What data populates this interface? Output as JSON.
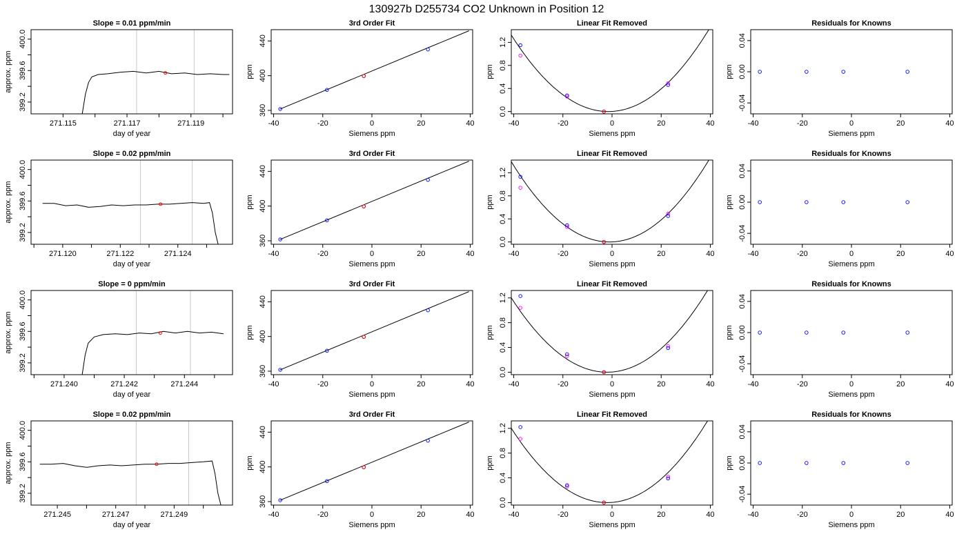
{
  "title": "130927b     D255734   CO2 Unknown in Position  12",
  "colors": {
    "axis": "#000000",
    "line": "#000000",
    "guide": "#c8c8c8",
    "blue": "#0000ff",
    "magenta": "#ff00ff",
    "red": "#ff0000"
  },
  "chart_data": [
    {
      "type": "line",
      "title": "Slope =  0.01  ppm/min",
      "xlabel": "day of year",
      "ylabel": "approx. ppm",
      "xlim": [
        271.114,
        271.1203
      ],
      "ylim": [
        399.05,
        400.12
      ],
      "xticks": [
        271.115,
        271.116,
        271.117,
        271.118,
        271.119,
        271.12
      ],
      "xticklabels": [
        "271.115",
        "",
        "271.117",
        "",
        "271.119",
        ""
      ],
      "yticks": [
        399.2,
        399.4,
        399.6,
        399.8,
        400.0
      ],
      "yticklabels": [
        "399.2",
        "",
        "399.6",
        "",
        "400.0"
      ],
      "guides": [
        271.1173,
        271.1191
      ],
      "marker": [
        271.1182,
        399.57
      ],
      "series": [
        {
          "x": [
            271.1156,
            271.1157,
            271.1158,
            271.1159,
            271.1161,
            271.1164,
            271.1168,
            271.1172,
            271.1176,
            271.118,
            271.1184,
            271.1188,
            271.1192,
            271.1196,
            271.12,
            271.1202
          ],
          "y": [
            399.05,
            399.3,
            399.45,
            399.52,
            399.55,
            399.56,
            399.58,
            399.59,
            399.57,
            399.59,
            399.56,
            399.57,
            399.55,
            399.56,
            399.55,
            399.55
          ]
        }
      ]
    },
    {
      "type": "line",
      "title": "Slope =  0.02  ppm/min",
      "xlabel": "day of year",
      "ylabel": "approx. ppm",
      "xlim": [
        271.1189,
        271.1259
      ],
      "ylim": [
        399.05,
        400.12
      ],
      "xticks": [
        271.119,
        271.12,
        271.121,
        271.122,
        271.123,
        271.124,
        271.125
      ],
      "xticklabels": [
        "",
        "271.120",
        "",
        "271.122",
        "",
        "271.124",
        ""
      ],
      "yticks": [
        399.2,
        399.4,
        399.6,
        399.8,
        400.0
      ],
      "yticklabels": [
        "399.2",
        "",
        "399.6",
        "",
        "400.0"
      ],
      "guides": [
        271.1227,
        271.1245
      ],
      "marker": [
        271.1234,
        399.56
      ],
      "series": [
        {
          "x": [
            271.1193,
            271.1197,
            271.1201,
            271.1205,
            271.1209,
            271.1213,
            271.1217,
            271.1221,
            271.1225,
            271.1229,
            271.1233,
            271.1237,
            271.1241,
            271.1245,
            271.1249,
            271.1251,
            271.1252,
            271.1253,
            271.1254
          ],
          "y": [
            399.57,
            399.57,
            399.54,
            399.55,
            399.52,
            399.53,
            399.55,
            399.54,
            399.55,
            399.55,
            399.56,
            399.56,
            399.57,
            399.58,
            399.57,
            399.58,
            399.45,
            399.2,
            399.05
          ]
        }
      ]
    },
    {
      "type": "line",
      "title": "Slope =  0  ppm/min",
      "xlabel": "day of year",
      "ylabel": "approx. ppm",
      "xlim": [
        271.2389,
        271.2456
      ],
      "ylim": [
        399.05,
        400.12
      ],
      "xticks": [
        271.239,
        271.24,
        271.241,
        271.242,
        271.243,
        271.244,
        271.245
      ],
      "xticklabels": [
        "",
        "271.240",
        "",
        "271.242",
        "",
        "271.244",
        ""
      ],
      "yticks": [
        399.2,
        399.4,
        399.6,
        399.8,
        400.0
      ],
      "yticklabels": [
        "399.2",
        "",
        "399.6",
        "",
        "400.0"
      ],
      "guides": [
        271.2424,
        271.2442
      ],
      "marker": [
        271.2432,
        399.58
      ],
      "series": [
        {
          "x": [
            271.2406,
            271.2407,
            271.2408,
            271.241,
            271.2413,
            271.2417,
            271.2421,
            271.2425,
            271.2429,
            271.2433,
            271.2437,
            271.2441,
            271.2445,
            271.2449,
            271.2453
          ],
          "y": [
            399.05,
            399.3,
            399.45,
            399.53,
            399.56,
            399.57,
            399.56,
            399.58,
            399.57,
            399.6,
            399.58,
            399.6,
            399.58,
            399.59,
            399.57
          ]
        }
      ]
    },
    {
      "type": "line",
      "title": "Slope =  0.02  ppm/min",
      "xlabel": "day of year",
      "ylabel": "approx. ppm",
      "xlim": [
        271.2441,
        271.251
      ],
      "ylim": [
        399.05,
        400.12
      ],
      "xticks": [
        271.245,
        271.246,
        271.247,
        271.248,
        271.249,
        271.25
      ],
      "xticklabels": [
        "271.245",
        "",
        "271.247",
        "",
        "271.249",
        ""
      ],
      "yticks": [
        399.2,
        399.4,
        399.6,
        399.8,
        400.0
      ],
      "yticklabels": [
        "399.2",
        "",
        "399.6",
        "",
        "400.0"
      ],
      "guides": [
        271.2477,
        271.2495
      ],
      "marker": [
        271.2484,
        399.57
      ],
      "series": [
        {
          "x": [
            271.2444,
            271.2448,
            271.2452,
            271.2456,
            271.246,
            271.2464,
            271.2468,
            271.2472,
            271.2476,
            271.248,
            271.2484,
            271.2488,
            271.2492,
            271.2496,
            271.25,
            271.2503,
            271.2504,
            271.2505,
            271.2506
          ],
          "y": [
            399.57,
            399.57,
            399.58,
            399.55,
            399.53,
            399.55,
            399.56,
            399.55,
            399.56,
            399.57,
            399.57,
            399.58,
            399.58,
            399.59,
            399.6,
            399.61,
            399.45,
            399.2,
            399.05
          ]
        }
      ]
    },
    {
      "type": "scatter",
      "title": "3rd Order Fit",
      "xlabel": "Siemens ppm",
      "ylabel": "ppm",
      "xlim": [
        -41,
        41
      ],
      "ylim": [
        356,
        453
      ],
      "xticks": [
        -40,
        -20,
        0,
        20,
        40
      ],
      "xticklabels": [
        "-40",
        "-20",
        "0",
        "20",
        "40"
      ],
      "yticks": [
        360,
        400,
        440
      ],
      "yticklabels": [
        "360",
        "400",
        "440"
      ],
      "line": {
        "x": [
          -37.5,
          39.5
        ],
        "y": [
          361.4,
          451.7
        ]
      },
      "series": [
        {
          "x": [
            -37.3,
            -18.3,
            -3.3,
            22.8
          ],
          "y": [
            361.6,
            383.6,
            399.6,
            430.2
          ]
        }
      ],
      "highlight": [
        -3.3,
        399.6
      ]
    },
    {
      "type": "scatter",
      "title": "3rd Order Fit",
      "xlabel": "Siemens ppm",
      "ylabel": "ppm",
      "xlim": [
        -41,
        41
      ],
      "ylim": [
        356,
        453
      ],
      "xticks": [
        -40,
        -20,
        0,
        20,
        40
      ],
      "xticklabels": [
        "-40",
        "-20",
        "0",
        "20",
        "40"
      ],
      "yticks": [
        360,
        400,
        440
      ],
      "yticklabels": [
        "360",
        "400",
        "440"
      ],
      "line": {
        "x": [
          -37.5,
          39.5
        ],
        "y": [
          361.4,
          451.7
        ]
      },
      "series": [
        {
          "x": [
            -37.3,
            -18.3,
            -3.3,
            22.8
          ],
          "y": [
            361.6,
            383.6,
            399.6,
            430.2
          ]
        }
      ],
      "highlight": [
        -3.3,
        399.6
      ]
    },
    {
      "type": "scatter",
      "title": "3rd Order Fit",
      "xlabel": "Siemens ppm",
      "ylabel": "ppm",
      "xlim": [
        -41,
        41
      ],
      "ylim": [
        356,
        453
      ],
      "xticks": [
        -40,
        -20,
        0,
        20,
        40
      ],
      "xticklabels": [
        "-40",
        "-20",
        "0",
        "20",
        "40"
      ],
      "yticks": [
        360,
        400,
        440
      ],
      "yticklabels": [
        "360",
        "400",
        "440"
      ],
      "line": {
        "x": [
          -37.5,
          39.5
        ],
        "y": [
          361.4,
          451.7
        ]
      },
      "series": [
        {
          "x": [
            -37.3,
            -18.3,
            -3.3,
            22.8
          ],
          "y": [
            361.6,
            383.6,
            399.6,
            430.2
          ]
        }
      ],
      "highlight": [
        -3.3,
        399.6
      ]
    },
    {
      "type": "scatter",
      "title": "3rd Order Fit",
      "xlabel": "Siemens ppm",
      "ylabel": "ppm",
      "xlim": [
        -41,
        41
      ],
      "ylim": [
        356,
        453
      ],
      "xticks": [
        -40,
        -20,
        0,
        20,
        40
      ],
      "xticklabels": [
        "-40",
        "-20",
        "0",
        "20",
        "40"
      ],
      "yticks": [
        360,
        400,
        440
      ],
      "yticklabels": [
        "360",
        "400",
        "440"
      ],
      "line": {
        "x": [
          -37.5,
          39.5
        ],
        "y": [
          361.4,
          451.7
        ]
      },
      "series": [
        {
          "x": [
            -37.3,
            -18.3,
            -3.3,
            22.8
          ],
          "y": [
            361.6,
            383.6,
            399.6,
            430.2
          ]
        }
      ],
      "highlight": [
        -3.3,
        399.6
      ]
    },
    {
      "type": "scatter",
      "title": "Linear Fit Removed",
      "xlabel": "Siemens ppm",
      "ylabel": "ppm",
      "xlim": [
        -41,
        41
      ],
      "ylim": [
        -0.04,
        1.42
      ],
      "xticks": [
        -40,
        -20,
        0,
        20,
        40
      ],
      "xticklabels": [
        "-40",
        "-20",
        "0",
        "20",
        "40"
      ],
      "yticks": [
        0.0,
        0.4,
        0.8,
        1.2
      ],
      "yticklabels": [
        "0.0",
        "0.4",
        "0.8",
        "1.2"
      ],
      "curve": {
        "x0": -1.5,
        "a": 0.00085,
        "b": 0.0
      },
      "blue": {
        "x": [
          -37.3,
          -18.3,
          -3.3,
          22.8
        ],
        "y": [
          1.15,
          0.28,
          0.0,
          0.46
        ]
      },
      "magenta": {
        "x": [
          -37.3,
          -18.3,
          22.8
        ],
        "y": [
          0.97,
          0.26,
          0.49
        ]
      },
      "highlight": [
        -3.3,
        0.0
      ]
    },
    {
      "type": "scatter",
      "title": "Linear Fit Removed",
      "xlabel": "Siemens ppm",
      "ylabel": "ppm",
      "xlim": [
        -41,
        41
      ],
      "ylim": [
        -0.04,
        1.42
      ],
      "xticks": [
        -40,
        -20,
        0,
        20,
        40
      ],
      "xticklabels": [
        "-40",
        "-20",
        "0",
        "20",
        "40"
      ],
      "yticks": [
        0.0,
        0.4,
        0.8,
        1.2
      ],
      "yticklabels": [
        "0.0",
        "0.4",
        "0.8",
        "1.2"
      ],
      "curve": {
        "x0": -1.0,
        "a": 0.00087,
        "b": 0.0
      },
      "blue": {
        "x": [
          -37.3,
          -18.3,
          -3.3,
          22.8
        ],
        "y": [
          1.13,
          0.29,
          0.0,
          0.45
        ]
      },
      "magenta": {
        "x": [
          -37.3,
          -18.3,
          22.8
        ],
        "y": [
          0.94,
          0.26,
          0.49
        ]
      },
      "highlight": [
        -3.3,
        0.0
      ]
    },
    {
      "type": "scatter",
      "title": "Linear Fit Removed",
      "xlabel": "Siemens ppm",
      "ylabel": "ppm",
      "xlim": [
        -41,
        41
      ],
      "ylim": [
        -0.04,
        1.32
      ],
      "xticks": [
        -40,
        -20,
        0,
        20,
        40
      ],
      "xticklabels": [
        "-40",
        "-20",
        "0",
        "20",
        "40"
      ],
      "yticks": [
        0.0,
        0.4,
        0.8,
        1.2
      ],
      "yticklabels": [
        "0.0",
        "0.4",
        "0.8",
        "1.2"
      ],
      "curve": {
        "x0": -2.0,
        "a": 0.00079,
        "b": 0.0
      },
      "blue": {
        "x": [
          -37.3,
          -18.3,
          -3.3,
          22.8
        ],
        "y": [
          1.23,
          0.29,
          0.0,
          0.39
        ]
      },
      "magenta": {
        "x": [
          -37.3,
          -18.3,
          22.8
        ],
        "y": [
          1.04,
          0.26,
          0.42
        ]
      },
      "highlight": [
        -3.3,
        0.0
      ]
    },
    {
      "type": "scatter",
      "title": "Linear Fit Removed",
      "xlabel": "Siemens ppm",
      "ylabel": "ppm",
      "xlim": [
        -41,
        41
      ],
      "ylim": [
        -0.04,
        1.32
      ],
      "xticks": [
        -40,
        -20,
        0,
        20,
        40
      ],
      "xticklabels": [
        "-40",
        "-20",
        "0",
        "20",
        "40"
      ],
      "yticks": [
        0.0,
        0.4,
        0.8,
        1.2
      ],
      "yticklabels": [
        "0.0",
        "0.4",
        "0.8",
        "1.2"
      ],
      "curve": {
        "x0": -2.0,
        "a": 0.00079,
        "b": 0.0
      },
      "blue": {
        "x": [
          -37.3,
          -18.3,
          -3.3,
          22.8
        ],
        "y": [
          1.22,
          0.28,
          0.0,
          0.39
        ]
      },
      "magenta": {
        "x": [
          -37.3,
          -18.3,
          22.8
        ],
        "y": [
          1.03,
          0.26,
          0.42
        ]
      },
      "highlight": [
        -3.3,
        0.0
      ]
    },
    {
      "type": "scatter",
      "title": "Residuals for Knowns",
      "xlabel": "Siemens ppm",
      "ylabel": "ppm",
      "xlim": [
        -41,
        41
      ],
      "ylim": [
        -0.054,
        0.054
      ],
      "xticks": [
        -40,
        -20,
        0,
        20,
        40
      ],
      "xticklabels": [
        "-40",
        "-20",
        "0",
        "20",
        "40"
      ],
      "yticks": [
        -0.04,
        0.0,
        0.04
      ],
      "yticklabels": [
        "-0.04",
        "0.00",
        "0.04"
      ],
      "series": [
        {
          "x": [
            -37.3,
            -18.3,
            -3.3,
            22.8
          ],
          "y": [
            0,
            0,
            0,
            0
          ]
        }
      ]
    },
    {
      "type": "scatter",
      "title": "Residuals for Knowns",
      "xlabel": "Siemens ppm",
      "ylabel": "ppm",
      "xlim": [
        -41,
        41
      ],
      "ylim": [
        -0.054,
        0.054
      ],
      "xticks": [
        -40,
        -20,
        0,
        20,
        40
      ],
      "xticklabels": [
        "-40",
        "-20",
        "0",
        "20",
        "40"
      ],
      "yticks": [
        -0.04,
        0.0,
        0.04
      ],
      "yticklabels": [
        "-0.04",
        "0.00",
        "0.04"
      ],
      "series": [
        {
          "x": [
            -37.3,
            -18.3,
            -3.3,
            22.8
          ],
          "y": [
            0,
            0,
            0,
            0
          ]
        }
      ]
    },
    {
      "type": "scatter",
      "title": "Residuals for Knowns",
      "xlabel": "Siemens ppm",
      "ylabel": "ppm",
      "xlim": [
        -41,
        41
      ],
      "ylim": [
        -0.054,
        0.054
      ],
      "xticks": [
        -40,
        -20,
        0,
        20,
        40
      ],
      "xticklabels": [
        "-40",
        "-20",
        "0",
        "20",
        "40"
      ],
      "yticks": [
        -0.04,
        0.0,
        0.04
      ],
      "yticklabels": [
        "-0.04",
        "0.00",
        "0.04"
      ],
      "series": [
        {
          "x": [
            -37.3,
            -18.3,
            -3.3,
            22.8
          ],
          "y": [
            0,
            0,
            0,
            0
          ]
        }
      ]
    },
    {
      "type": "scatter",
      "title": "Residuals for Knowns",
      "xlabel": "Siemens ppm",
      "ylabel": "ppm",
      "xlim": [
        -41,
        41
      ],
      "ylim": [
        -0.054,
        0.054
      ],
      "xticks": [
        -40,
        -20,
        0,
        20,
        40
      ],
      "xticklabels": [
        "-40",
        "-20",
        "0",
        "20",
        "40"
      ],
      "yticks": [
        -0.04,
        0.0,
        0.04
      ],
      "yticklabels": [
        "-0.04",
        "0.00",
        "0.04"
      ],
      "series": [
        {
          "x": [
            -37.3,
            -18.3,
            -3.3,
            22.8
          ],
          "y": [
            0,
            0,
            0,
            0
          ]
        }
      ]
    }
  ]
}
